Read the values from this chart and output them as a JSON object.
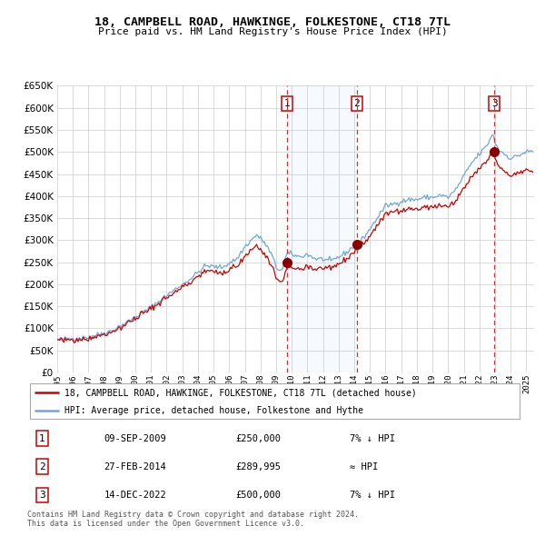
{
  "title": "18, CAMPBELL ROAD, HAWKINGE, FOLKESTONE, CT18 7TL",
  "subtitle": "Price paid vs. HM Land Registry's House Price Index (HPI)",
  "legend_line1": "18, CAMPBELL ROAD, HAWKINGE, FOLKESTONE, CT18 7TL (detached house)",
  "legend_line2": "HPI: Average price, detached house, Folkestone and Hythe",
  "sale_dates": [
    "09-SEP-2009",
    "27-FEB-2014",
    "14-DEC-2022"
  ],
  "sale_prices": [
    250000,
    289995,
    500000
  ],
  "sale_labels": [
    "1",
    "2",
    "3"
  ],
  "sale_date_nums": [
    2009.69,
    2014.16,
    2022.96
  ],
  "annotation_rows": [
    [
      "1",
      "09-SEP-2009",
      "£250,000",
      "7% ↓ HPI"
    ],
    [
      "2",
      "27-FEB-2014",
      "£289,995",
      "≈ HPI"
    ],
    [
      "3",
      "14-DEC-2022",
      "£500,000",
      "7% ↓ HPI"
    ]
  ],
  "footer": "Contains HM Land Registry data © Crown copyright and database right 2024.\nThis data is licensed under the Open Government Licence v3.0.",
  "ylim": [
    0,
    650000
  ],
  "yticks": [
    0,
    50000,
    100000,
    150000,
    200000,
    250000,
    300000,
    350000,
    400000,
    450000,
    500000,
    550000,
    600000,
    650000
  ],
  "hpi_color": "#6fa8d6",
  "price_color": "#cc0000",
  "dot_color": "#880000",
  "grid_color": "#cccccc",
  "bg_color": "#ffffff",
  "shaded_region": [
    2009.69,
    2014.16
  ],
  "vline_dates": [
    2009.69,
    2014.16,
    2022.96
  ],
  "xmin": 1995.0,
  "xmax": 2025.5
}
